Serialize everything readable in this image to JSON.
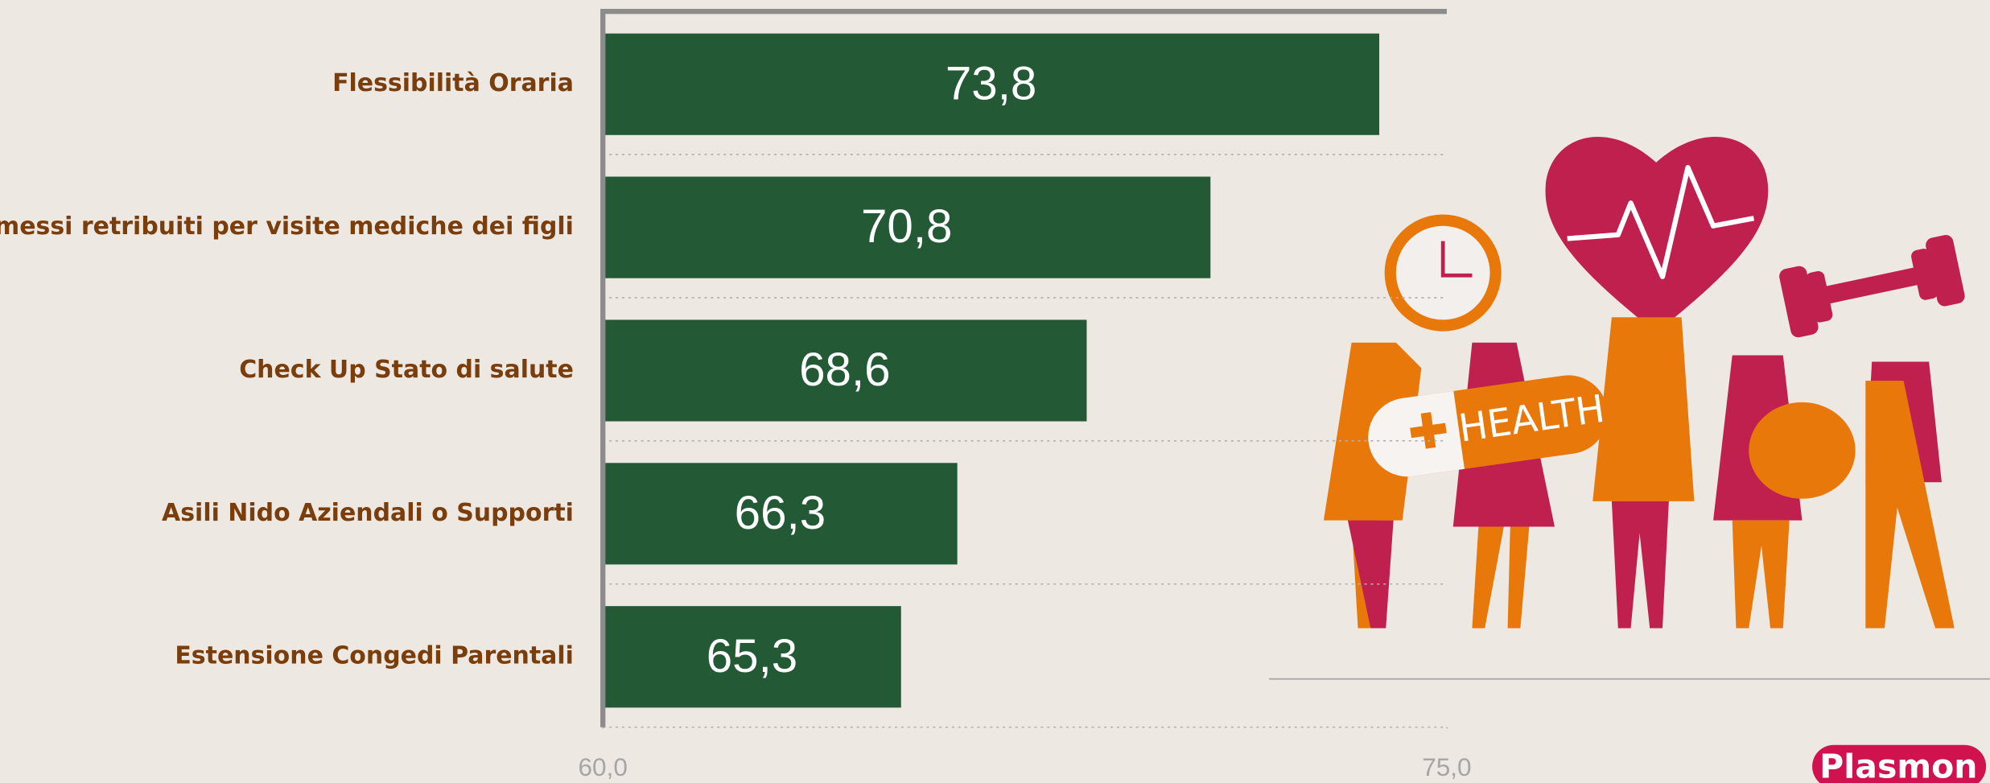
{
  "chart_data": {
    "type": "bar",
    "orientation": "horizontal",
    "categories": [
      "Flessibilità Oraria",
      "Permessi retribuiti per visite mediche dei figli",
      "Check Up Stato di salute",
      "Asili Nido Aziendali o Supporti",
      "Estensione Congedi Parentali"
    ],
    "values": [
      73.8,
      70.8,
      68.6,
      66.3,
      65.3
    ],
    "value_labels": [
      "73,8",
      "70,8",
      "68,6",
      "66,3",
      "65,3"
    ],
    "color": "#235a35",
    "xlim": [
      60,
      75
    ],
    "xticks": [
      {
        "value": 60,
        "label": "60,0"
      },
      {
        "value": 75,
        "label": "75,0"
      }
    ],
    "grid": false
  },
  "illustration_text": "HEALTH",
  "logo": "Plasmon"
}
